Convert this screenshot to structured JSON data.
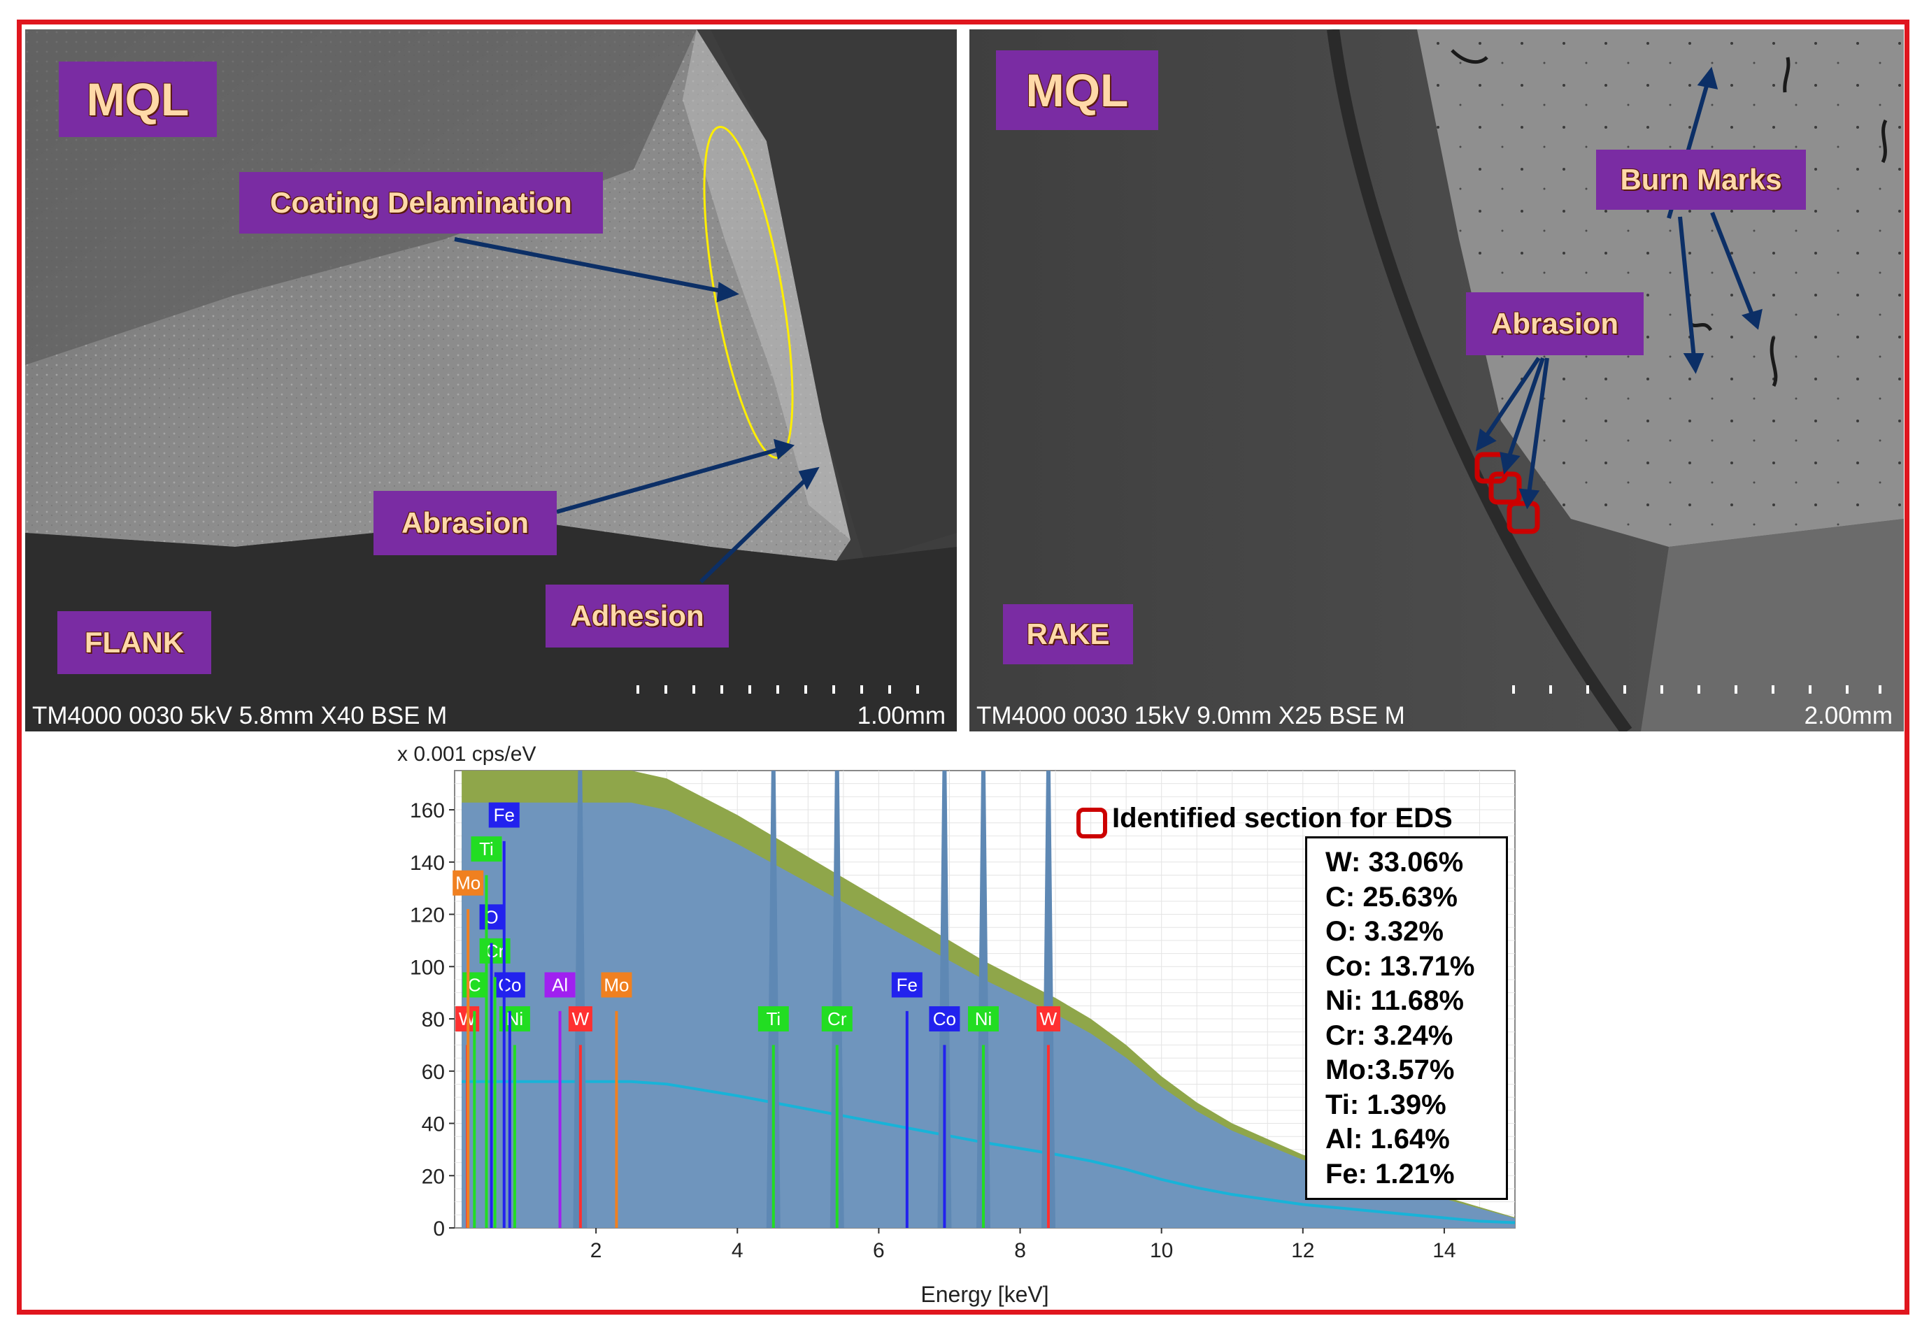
{
  "flank": {
    "mode_label": "MQL",
    "view_label": "FLANK",
    "callouts": {
      "coating": "Coating Delamination",
      "abrasion": "Abrasion",
      "adhesion": "Adhesion"
    },
    "meta": "TM4000 0030 5kV 5.8mm X40 BSE M",
    "scale": "1.00mm"
  },
  "rake": {
    "mode_label": "MQL",
    "view_label": "RAKE",
    "callouts": {
      "burn": "Burn Marks",
      "abrasion": "Abrasion"
    },
    "meta": "TM4000 0030 15kV 9.0mm X25 BSE M",
    "scale": "2.00mm"
  },
  "legend": "Identified section for EDS",
  "composition": [
    "W: 33.06%",
    "C: 25.63%",
    "O: 3.32%",
    "Co: 13.71%",
    "Ni: 11.68%",
    "Cr: 3.24%",
    "Mo:3.57%",
    "Ti: 1.39%",
    "Al: 1.64%",
    "Fe: 1.21%"
  ],
  "chart_data": {
    "type": "area",
    "title": "",
    "ylabel": "x 0.001 cps/eV",
    "xlabel": "Energy [keV]",
    "xlim": [
      0,
      15
    ],
    "ylim": [
      0,
      175
    ],
    "xticks": [
      2,
      4,
      6,
      8,
      10,
      12,
      14
    ],
    "yticks": [
      0,
      20,
      40,
      60,
      80,
      100,
      120,
      140,
      160
    ],
    "spectrum": {
      "x": [
        0.1,
        0.3,
        0.5,
        0.7,
        1.0,
        1.5,
        2.0,
        2.5,
        3.0,
        3.5,
        4.0,
        4.5,
        5.0,
        5.5,
        6.0,
        6.5,
        7.0,
        7.5,
        8.0,
        8.5,
        9.0,
        9.5,
        10.0,
        10.5,
        11.0,
        11.5,
        12.0,
        12.5,
        13.0,
        13.5,
        14.0,
        14.5,
        15.0
      ],
      "y": [
        175,
        175,
        175,
        175,
        175,
        175,
        175,
        175,
        172,
        165,
        158,
        150,
        142,
        134,
        126,
        118,
        110,
        102,
        95,
        88,
        80,
        70,
        58,
        48,
        40,
        34,
        28,
        24,
        20,
        16,
        12,
        8,
        4
      ]
    },
    "peaks": [
      {
        "element": "W",
        "energy": 1.775,
        "height": 175
      },
      {
        "element": "Co",
        "energy": 6.93,
        "height": 175
      },
      {
        "element": "Ni",
        "energy": 7.48,
        "height": 175
      },
      {
        "element": "W",
        "energy": 8.4,
        "height": 175
      },
      {
        "element": "Cr",
        "energy": 5.41,
        "height": 175
      },
      {
        "element": "Ti",
        "energy": 4.51,
        "height": 175
      }
    ],
    "element_lines": [
      {
        "element": "W",
        "energy": 0.18,
        "label_y": 80,
        "color": "#ff3030"
      },
      {
        "element": "Ni",
        "energy": 0.85,
        "label_y": 80,
        "color": "#22dd22"
      },
      {
        "element": "W",
        "energy": 1.78,
        "label_y": 80,
        "color": "#ff3030"
      },
      {
        "element": "C",
        "energy": 0.28,
        "label_y": 93,
        "color": "#22dd22"
      },
      {
        "element": "Co",
        "energy": 0.78,
        "label_y": 93,
        "color": "#2222ee"
      },
      {
        "element": "Al",
        "energy": 1.49,
        "label_y": 93,
        "color": "#a020f0"
      },
      {
        "element": "Mo",
        "energy": 2.29,
        "label_y": 93,
        "color": "#f08020"
      },
      {
        "element": "Cr",
        "energy": 0.57,
        "label_y": 106,
        "color": "#22dd22"
      },
      {
        "element": "O",
        "energy": 0.52,
        "label_y": 119,
        "color": "#2222ee"
      },
      {
        "element": "Mo",
        "energy": 0.19,
        "label_y": 132,
        "color": "#f08020"
      },
      {
        "element": "Ti",
        "energy": 0.45,
        "label_y": 145,
        "color": "#22dd22"
      },
      {
        "element": "Fe",
        "energy": 0.7,
        "label_y": 158,
        "color": "#2222ee"
      },
      {
        "element": "Ti",
        "energy": 4.51,
        "label_y": 80,
        "color": "#22dd22"
      },
      {
        "element": "Cr",
        "energy": 5.41,
        "label_y": 80,
        "color": "#22dd22"
      },
      {
        "element": "Fe",
        "energy": 6.4,
        "label_y": 93,
        "color": "#2222ee"
      },
      {
        "element": "Co",
        "energy": 6.93,
        "label_y": 80,
        "color": "#2222ee"
      },
      {
        "element": "Ni",
        "energy": 7.48,
        "label_y": 80,
        "color": "#22dd22"
      },
      {
        "element": "W",
        "energy": 8.4,
        "label_y": 80,
        "color": "#ff3030"
      }
    ]
  }
}
